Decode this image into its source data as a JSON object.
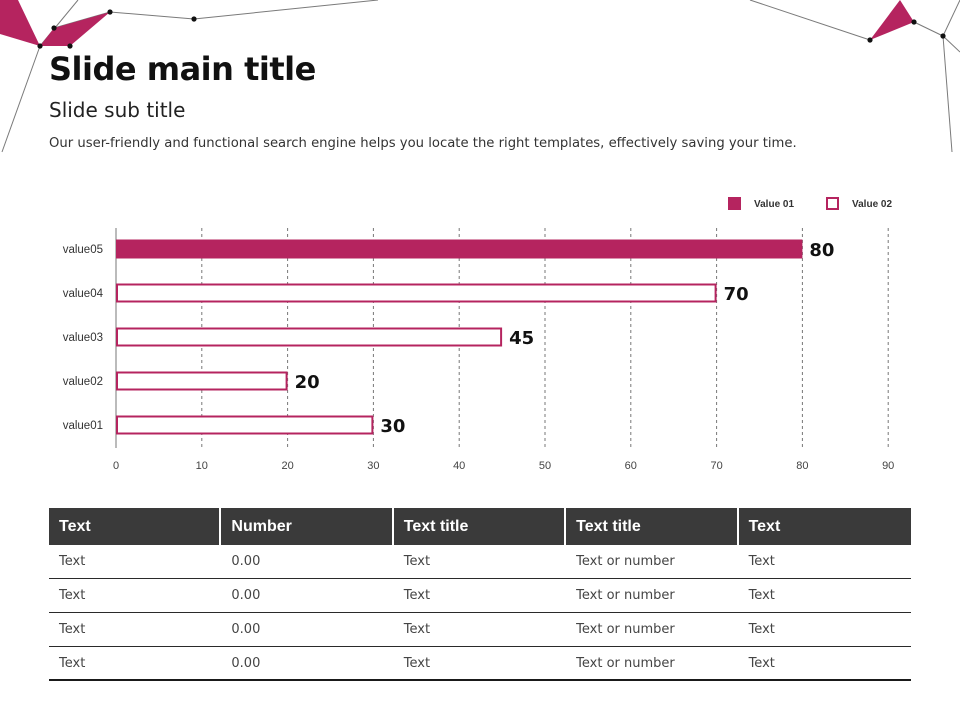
{
  "slide": {
    "title": "Slide main title",
    "subtitle": "Slide sub title",
    "description": "Our user-friendly and functional search engine helps you locate the right templates, effectively saving your time."
  },
  "colors": {
    "accent": "#b5245f",
    "header_bg": "#3a3a3a",
    "grid": "#777777"
  },
  "chart_data": {
    "type": "bar",
    "orientation": "horizontal",
    "categories": [
      "value05",
      "value04",
      "value03",
      "value02",
      "value01"
    ],
    "series": [
      {
        "name": "Value 01",
        "style": "filled",
        "values": [
          80,
          null,
          null,
          null,
          null
        ]
      },
      {
        "name": "Value 02",
        "style": "outline",
        "values": [
          null,
          70,
          45,
          20,
          30
        ]
      }
    ],
    "data_labels": [
      "80",
      "70",
      "45",
      "20",
      "30"
    ],
    "xlim": [
      0,
      90
    ],
    "xticks": [
      0,
      10,
      20,
      30,
      40,
      50,
      60,
      70,
      80,
      90
    ],
    "grid": "vertical dashed",
    "legend_position": "top-right"
  },
  "table": {
    "headers": [
      "Text",
      "Number",
      "Text title",
      "Text title",
      "Text"
    ],
    "rows": [
      [
        "Text",
        "0.00",
        "Text",
        "Text or number",
        "Text"
      ],
      [
        "Text",
        "0.00",
        "Text",
        "Text or number",
        "Text"
      ],
      [
        "Text",
        "0.00",
        "Text",
        "Text or number",
        "Text"
      ],
      [
        "Text",
        "0.00",
        "Text",
        "Text or number",
        "Text"
      ]
    ]
  }
}
